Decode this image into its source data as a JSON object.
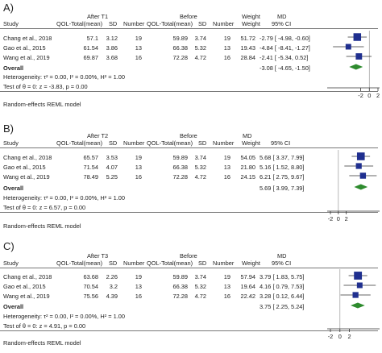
{
  "chart_data": [
    {
      "type": "forest",
      "panel_label": "A)",
      "headers": {
        "study": "Study",
        "group1": "After T1",
        "group2": "Before",
        "mean": "QOL-Total(mean)",
        "sd": "SD",
        "number": "Number",
        "weight": "Weight",
        "md": "MD",
        "ci": "95% CI"
      },
      "studies": [
        {
          "study": "Chang et al., 2018",
          "after_mean": "57.1",
          "after_sd": "3.12",
          "after_n": "19",
          "before_mean": "59.89",
          "before_sd": "3.74",
          "before_n": "19",
          "weight": "51.72",
          "md": -2.79,
          "lo": -4.98,
          "hi": -0.6,
          "md_text": "-2.79 [ -4.98, -0.60]"
        },
        {
          "study": "Gao et al., 2015",
          "after_mean": "61.54",
          "after_sd": "3.86",
          "after_n": "13",
          "before_mean": "66.38",
          "before_sd": "5.32",
          "before_n": "13",
          "weight": "19.43",
          "md": -4.84,
          "lo": -8.41,
          "hi": -1.27,
          "md_text": "-4.84 [ -8.41, -1.27]"
        },
        {
          "study": "Wang et al., 2019",
          "after_mean": "69.87",
          "after_sd": "3.68",
          "after_n": "16",
          "before_mean": "72.28",
          "before_sd": "4.72",
          "before_n": "16",
          "weight": "28.84",
          "md": -2.41,
          "lo": -5.34,
          "hi": 0.52,
          "md_text": "-2.41 [ -5.34, 0.52]"
        }
      ],
      "overall": {
        "label": "Overall",
        "md": -3.08,
        "lo": -4.65,
        "hi": -1.5,
        "md_text": "-3.08 [ -4.65, -1.50]"
      },
      "heterogeneity": "Heterogeneity: τ² = 0.00, I² = 0.00%, H² = 1.00",
      "test": "Test of θ = 0: z = -3.83, p = 0.00",
      "model": "Random-effects REML model",
      "xlim": [
        -9,
        2
      ],
      "ticks": [
        -2,
        0,
        2
      ],
      "tick_labels": [
        "-2",
        "0",
        "2"
      ]
    },
    {
      "type": "forest",
      "panel_label": "B)",
      "headers": {
        "study": "Study",
        "group1": "After T2",
        "group2": "Before",
        "mean": "QOL-Total(mean)",
        "sd": "SD",
        "number": "Number",
        "weight": "Weight",
        "md": "MD",
        "ci": "95% CI"
      },
      "studies": [
        {
          "study": "Chang et al., 2018",
          "after_mean": "65.57",
          "after_sd": "3.53",
          "after_n": "19",
          "before_mean": "59.89",
          "before_sd": "3.74",
          "before_n": "19",
          "weight": "54.05",
          "md": 5.68,
          "lo": 3.37,
          "hi": 7.99,
          "md_text": "5.68 [ 3.37, 7.99]"
        },
        {
          "study": "Gao et al., 2015",
          "after_mean": "71.54",
          "after_sd": "4.07",
          "after_n": "13",
          "before_mean": "66.38",
          "before_sd": "5.32",
          "before_n": "13",
          "weight": "21.80",
          "md": 5.16,
          "lo": 1.52,
          "hi": 8.8,
          "md_text": "5.16 [ 1.52, 8.80]"
        },
        {
          "study": "Wang et al., 2019",
          "after_mean": "78.49",
          "after_sd": "5.25",
          "after_n": "16",
          "before_mean": "72.28",
          "before_sd": "4.72",
          "before_n": "16",
          "weight": "24.15",
          "md": 6.21,
          "lo": 2.75,
          "hi": 9.67,
          "md_text": "6.21 [ 2.75, 9.67]"
        }
      ],
      "overall": {
        "label": "Overall",
        "md": 5.69,
        "lo": 3.99,
        "hi": 7.39,
        "md_text": "5.69 [ 3.99, 7.39]"
      },
      "heterogeneity": "Heterogeneity: τ² = 0.00, I² = 0.00%, H² = 1.00",
      "test": "Test of θ = 0: z = 6.57, p = 0.00",
      "model": "Random-effects REML model",
      "xlim": [
        -2,
        10
      ],
      "ticks": [
        -2,
        0,
        2
      ],
      "tick_labels": [
        "-2",
        "0",
        "2"
      ]
    },
    {
      "type": "forest",
      "panel_label": "C)",
      "headers": {
        "study": "Study",
        "group1": "After T3",
        "group2": "Before",
        "mean": "QOL-Total(mean)",
        "sd": "SD",
        "number": "Number",
        "weight": "Weight",
        "md": "MD",
        "ci": "95% CI"
      },
      "studies": [
        {
          "study": "Chang et al., 2018",
          "after_mean": "63.68",
          "after_sd": "2.26",
          "after_n": "19",
          "before_mean": "59.89",
          "before_sd": "3.74",
          "before_n": "19",
          "weight": "57.94",
          "md": 3.79,
          "lo": 1.83,
          "hi": 5.75,
          "md_text": "3.79 [ 1.83, 5.75]"
        },
        {
          "study": "Gao et al., 2015",
          "after_mean": "70.54",
          "after_sd": "3.2",
          "after_n": "13",
          "before_mean": "66.38",
          "before_sd": "5.32",
          "before_n": "13",
          "weight": "19.64",
          "md": 4.16,
          "lo": 0.79,
          "hi": 7.53,
          "md_text": "4.16 [ 0.79, 7.53]"
        },
        {
          "study": "Wang et al., 2019",
          "after_mean": "75.56",
          "after_sd": "4.39",
          "after_n": "16",
          "before_mean": "72.28",
          "before_sd": "4.72",
          "before_n": "16",
          "weight": "22.42",
          "md": 3.28,
          "lo": 0.12,
          "hi": 6.44,
          "md_text": "3.28 [ 0.12, 6.44]"
        }
      ],
      "overall": {
        "label": "Overall",
        "md": 3.75,
        "lo": 2.25,
        "hi": 5.24,
        "md_text": "3.75 [ 2.25, 5.24]"
      },
      "heterogeneity": "Heterogeneity: τ² = 0.00, I² = 0.00%, H² = 1.00",
      "test": "Test of θ = 0: z = 4.91, p = 0.00",
      "model": "Random-effects REML model",
      "xlim": [
        -2,
        8
      ],
      "ticks": [
        -2,
        0,
        2
      ],
      "tick_labels": [
        "-2",
        "0",
        "2"
      ]
    }
  ],
  "colors": {
    "marker": "#1f2f8f",
    "diamond": "#2e8b2e",
    "line": "#333333"
  }
}
